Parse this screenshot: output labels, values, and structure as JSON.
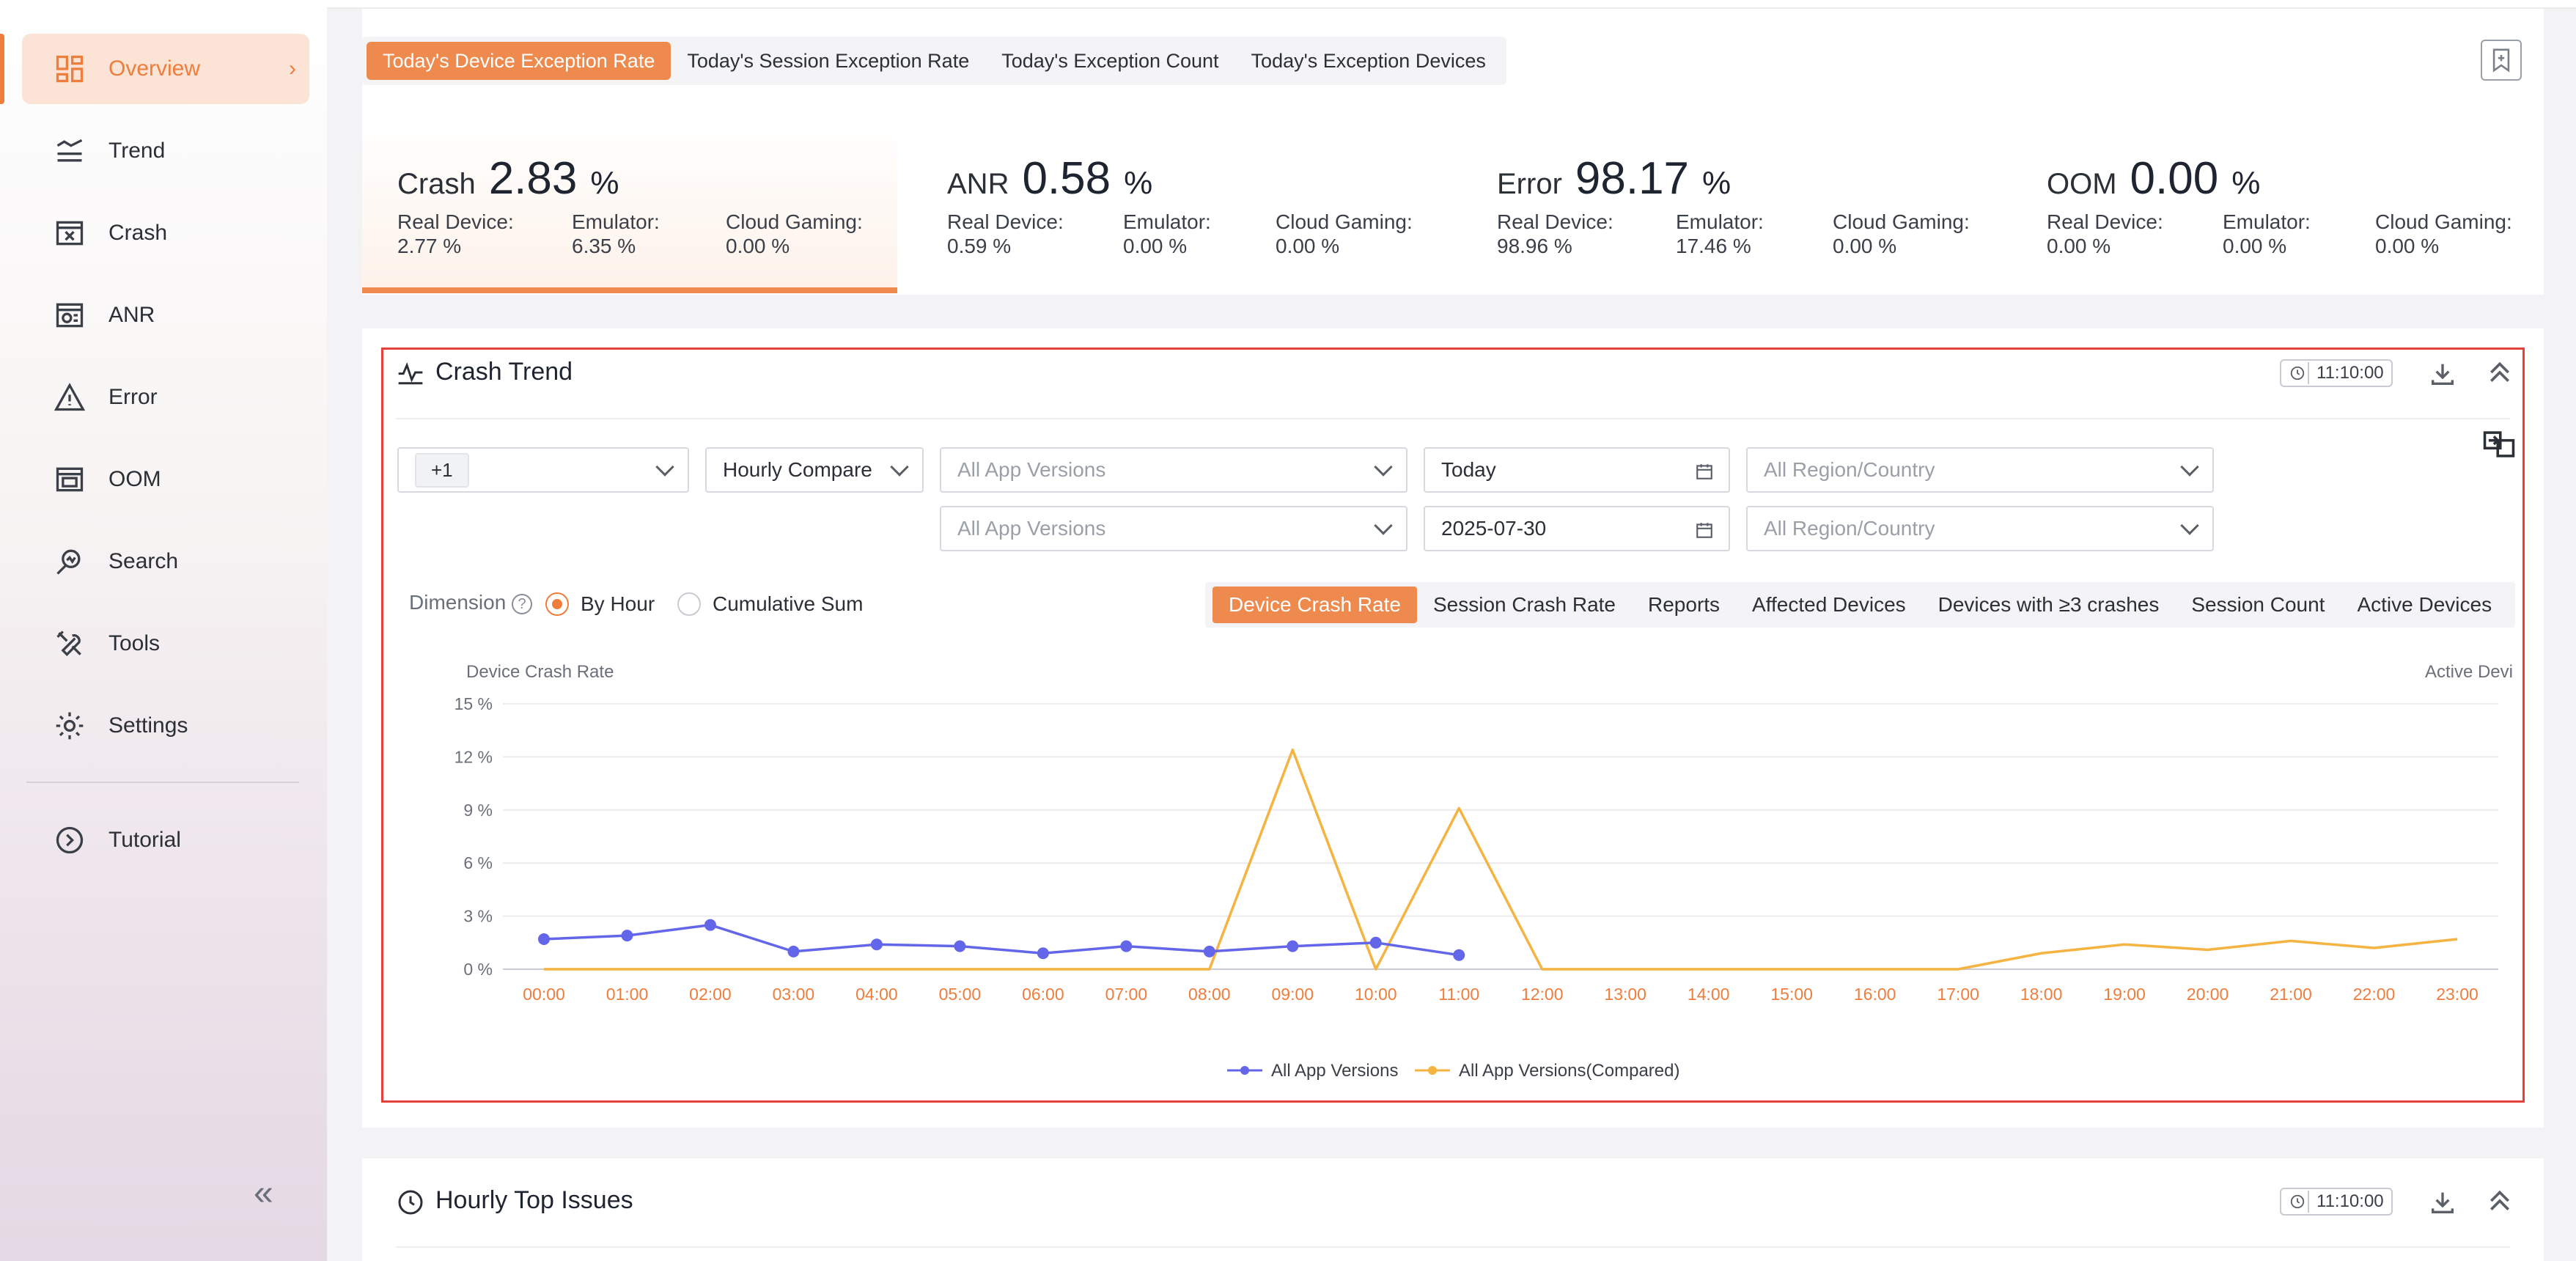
{
  "sidebar": {
    "items": [
      {
        "label": "Overview",
        "icon": "dashboard-icon"
      },
      {
        "label": "Trend",
        "icon": "trend-icon"
      },
      {
        "label": "Crash",
        "icon": "crash-icon"
      },
      {
        "label": "ANR",
        "icon": "anr-icon"
      },
      {
        "label": "Error",
        "icon": "warning-icon"
      },
      {
        "label": "OOM",
        "icon": "oom-icon"
      },
      {
        "label": "Search",
        "icon": "search-icon"
      },
      {
        "label": "Tools",
        "icon": "tools-icon"
      },
      {
        "label": "Settings",
        "icon": "gear-icon"
      },
      {
        "label": "Tutorial",
        "icon": "compass-icon"
      }
    ],
    "collapse": "«"
  },
  "top_tabs": [
    "Today's Device Exception Rate",
    "Today's Session Exception Rate",
    "Today's Exception Count",
    "Today's Exception Devices"
  ],
  "metrics": [
    {
      "name": "Crash",
      "value": "2.83",
      "unit": "%",
      "real_label": "Real Device:",
      "real": "2.77 %",
      "emu_label": "Emulator:",
      "emu": "6.35 %",
      "cloud_label": "Cloud Gaming:",
      "cloud": "0.00 %"
    },
    {
      "name": "ANR",
      "value": "0.58",
      "unit": "%",
      "real_label": "Real Device:",
      "real": "0.59 %",
      "emu_label": "Emulator:",
      "emu": "0.00 %",
      "cloud_label": "Cloud Gaming:",
      "cloud": "0.00 %"
    },
    {
      "name": "Error",
      "value": "98.17",
      "unit": "%",
      "real_label": "Real Device:",
      "real": "98.96 %",
      "emu_label": "Emulator:",
      "emu": "17.46 %",
      "cloud_label": "Cloud Gaming:",
      "cloud": "0.00 %"
    },
    {
      "name": "OOM",
      "value": "0.00",
      "unit": "%",
      "real_label": "Real Device:",
      "real": "0.00 %",
      "emu_label": "Emulator:",
      "emu": "0.00 %",
      "cloud_label": "Cloud Gaming:",
      "cloud": "0.00 %"
    }
  ],
  "crash_trend": {
    "title": "Crash Trend",
    "time": "11:10:00",
    "filters": {
      "chip": "+1",
      "compare": "Hourly Compare",
      "app_versions": "All App Versions",
      "app_versions_2": "All App Versions",
      "date": "Today",
      "date_2": "2025-07-30",
      "region": "All Region/Country",
      "region_2": "All Region/Country"
    },
    "dimension_label": "Dimension",
    "radio_by_hour": "By Hour",
    "radio_cumulative": "Cumulative Sum",
    "metric_tabs": [
      "Device Crash Rate",
      "Session Crash Rate",
      "Reports",
      "Affected Devices",
      "Devices with ≥3 crashes",
      "Session Count",
      "Active Devices"
    ]
  },
  "chart_data": {
    "type": "line",
    "ylabel": "Device Crash Rate",
    "y2label": "Active Devi",
    "ylim": [
      0,
      15
    ],
    "yticks": [
      "0 %",
      "3 %",
      "6 %",
      "9 %",
      "12 %",
      "15 %"
    ],
    "categories": [
      "00:00",
      "01:00",
      "02:00",
      "03:00",
      "04:00",
      "05:00",
      "06:00",
      "07:00",
      "08:00",
      "09:00",
      "10:00",
      "11:00",
      "12:00",
      "13:00",
      "14:00",
      "15:00",
      "16:00",
      "17:00",
      "18:00",
      "19:00",
      "20:00",
      "21:00",
      "22:00",
      "23:00"
    ],
    "series": [
      {
        "name": "All App Versions",
        "color": "#6366e8",
        "values": [
          1.7,
          1.9,
          2.5,
          1.0,
          1.4,
          1.3,
          0.9,
          1.3,
          1.0,
          1.3,
          1.5,
          0.8,
          null,
          null,
          null,
          null,
          null,
          null,
          null,
          null,
          null,
          null,
          null,
          null
        ]
      },
      {
        "name": "All App Versions(Compared)",
        "color": "#f5b342",
        "values": [
          0,
          0,
          0,
          0,
          0,
          0,
          0,
          0,
          0,
          12.4,
          0,
          9.1,
          0,
          0,
          0,
          0,
          0,
          0,
          0.9,
          1.4,
          1.1,
          1.6,
          1.2,
          1.7
        ]
      }
    ],
    "legend": "bottom-center",
    "grid": true
  },
  "hourly_top": {
    "title": "Hourly Top Issues",
    "time": "11:10:00"
  }
}
